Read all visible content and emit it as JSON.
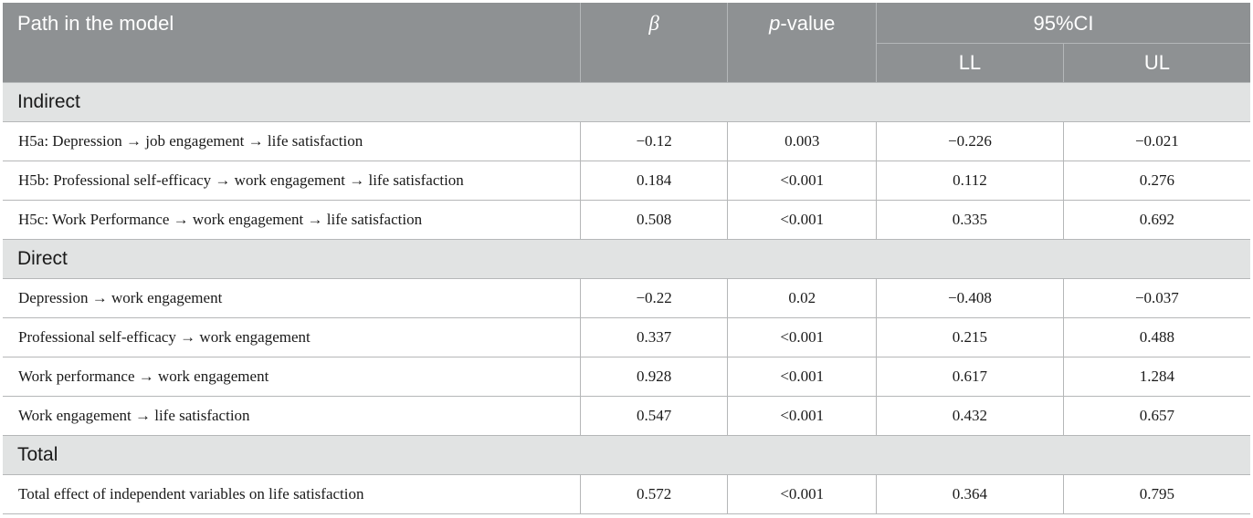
{
  "header": {
    "path": "Path in the model",
    "beta": "β",
    "p_italic": "p",
    "p_rest": "-value",
    "ci": "95%CI",
    "ll": "LL",
    "ul": "UL"
  },
  "sections": [
    {
      "title": "Indirect",
      "rows": [
        {
          "path": "H5a: Depression →  job engagement →  life satisfaction",
          "beta": "−0.12",
          "p": "0.003",
          "ll": "−0.226",
          "ul": "−0.021"
        },
        {
          "path": "H5b: Professional self-efficacy →  work engagement →  life satisfaction",
          "beta": "0.184",
          "p": "<0.001",
          "ll": "0.112",
          "ul": "0.276"
        },
        {
          "path": "H5c: Work Performance →  work engagement →  life satisfaction",
          "beta": "0.508",
          "p": "<0.001",
          "ll": "0.335",
          "ul": "0.692"
        }
      ]
    },
    {
      "title": "Direct",
      "rows": [
        {
          "path": "Depression →  work engagement",
          "beta": "−0.22",
          "p": "0.02",
          "ll": "−0.408",
          "ul": "−0.037"
        },
        {
          "path": "Professional self-efficacy →  work engagement",
          "beta": "0.337",
          "p": "<0.001",
          "ll": "0.215",
          "ul": "0.488"
        },
        {
          "path": "Work performance →  work engagement",
          "beta": "0.928",
          "p": "<0.001",
          "ll": "0.617",
          "ul": "1.284"
        },
        {
          "path": "Work engagement →  life satisfaction",
          "beta": "0.547",
          "p": "<0.001",
          "ll": "0.432",
          "ul": "0.657"
        }
      ]
    },
    {
      "title": "Total",
      "rows": [
        {
          "path": "Total effect of independent variables on life satisfaction",
          "beta": "0.572",
          "p": "<0.001",
          "ll": "0.364",
          "ul": "0.795"
        }
      ]
    }
  ]
}
